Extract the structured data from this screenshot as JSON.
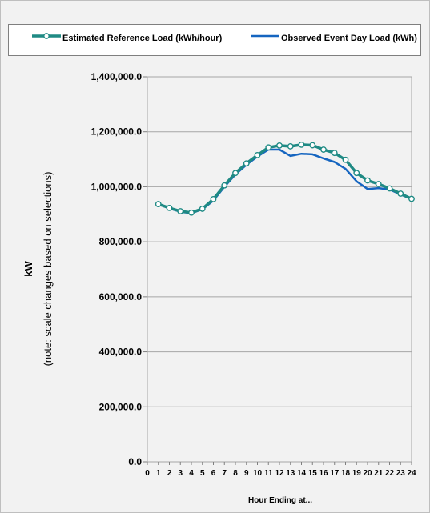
{
  "chart_data": {
    "type": "line",
    "title": "",
    "xlabel": "Hour Ending at...",
    "ylabel": "kW",
    "ylabel_note": "(note: scale changes based on selections)",
    "x": [
      1,
      2,
      3,
      4,
      5,
      6,
      7,
      8,
      9,
      10,
      11,
      12,
      13,
      14,
      15,
      16,
      17,
      18,
      19,
      20,
      21,
      22,
      23,
      24
    ],
    "x_ticks": [
      "0",
      "1",
      "2",
      "3",
      "4",
      "5",
      "6",
      "7",
      "8",
      "9",
      "10",
      "11",
      "12",
      "13",
      "14",
      "15",
      "16",
      "17",
      "18",
      "19",
      "20",
      "21",
      "22",
      "23",
      "24"
    ],
    "xlim": [
      0,
      24
    ],
    "ylim": [
      0,
      1400000
    ],
    "y_ticks": [
      0,
      200000,
      400000,
      600000,
      800000,
      1000000,
      1200000,
      1400000
    ],
    "y_tick_labels": [
      "0.0",
      "200,000.0",
      "400,000.0",
      "600,000.0",
      "800,000.0",
      "1,000,000.0",
      "1,200,000.0",
      "1,400,000.0"
    ],
    "grid": "horizontal",
    "legend_position": "top",
    "series": [
      {
        "name": "Estimated Reference Load (kWh/hour)",
        "color": "#1f8a84",
        "marker": "circle",
        "values": [
          937000,
          923000,
          911000,
          906000,
          920000,
          955000,
          1005000,
          1050000,
          1085000,
          1115000,
          1143000,
          1150000,
          1147000,
          1153000,
          1151000,
          1135000,
          1123000,
          1098000,
          1050000,
          1023000,
          1010000,
          994000,
          975000,
          956000
        ]
      },
      {
        "name": "Observed Event Day Load (kWh)",
        "color": "#1565c0",
        "marker": "none",
        "values": [
          937000,
          921000,
          909000,
          904000,
          918000,
          950000,
          1000000,
          1045000,
          1080000,
          1110000,
          1135000,
          1135000,
          1112000,
          1120000,
          1118000,
          1103000,
          1090000,
          1065000,
          1020000,
          992000,
          995000,
          990000,
          972000,
          955000
        ]
      }
    ]
  }
}
